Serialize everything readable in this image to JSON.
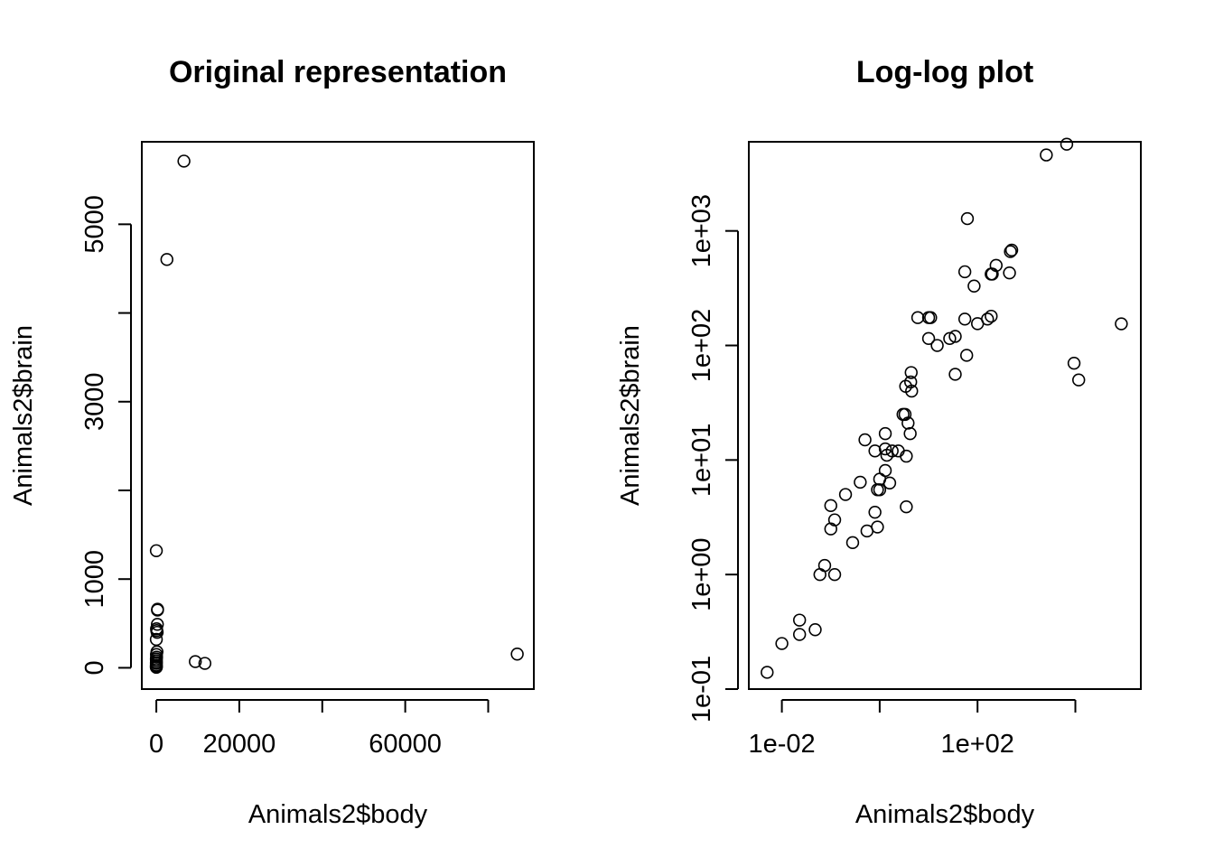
{
  "chart_data": [
    {
      "type": "scatter",
      "title": "Original representation",
      "xlabel": "Animals2$body",
      "ylabel": "Animals2$brain",
      "xscale": "linear",
      "yscale": "linear",
      "xlim": [
        -3500,
        91000
      ],
      "ylim": [
        -240,
        5930
      ],
      "x_ticks": [
        0,
        20000,
        40000,
        60000,
        80000
      ],
      "x_tick_labels": [
        "0",
        "20000",
        "",
        "60000",
        ""
      ],
      "y_ticks": [
        0,
        1000,
        2000,
        3000,
        4000,
        5000
      ],
      "y_tick_labels": [
        "0",
        "1000",
        "",
        "3000",
        "",
        "5000"
      ],
      "grid": false,
      "legend": "none",
      "points": [
        {
          "x": 6654,
          "y": 5712
        },
        {
          "x": 2547,
          "y": 4603
        },
        {
          "x": 87000,
          "y": 154.5
        },
        {
          "x": 9400,
          "y": 70
        },
        {
          "x": 11700,
          "y": 50
        },
        {
          "x": 0.0,
          "y": 1320
        },
        {
          "x": 250,
          "y": 490
        },
        {
          "x": 280,
          "y": 650
        },
        {
          "x": 300,
          "y": 660
        },
        {
          "x": 100,
          "y": 420
        },
        {
          "x": 50,
          "y": 440
        },
        {
          "x": 0,
          "y": 320
        },
        {
          "x": 200,
          "y": 400
        },
        {
          "x": 150,
          "y": 180
        },
        {
          "x": 30,
          "y": 150
        },
        {
          "x": 60,
          "y": 120
        },
        {
          "x": 10,
          "y": 60
        },
        {
          "x": 0,
          "y": 100
        },
        {
          "x": 20,
          "y": 80
        },
        {
          "x": 5,
          "y": 50
        },
        {
          "x": 2,
          "y": 30
        },
        {
          "x": 0,
          "y": 20
        },
        {
          "x": 0,
          "y": 10
        },
        {
          "x": 0,
          "y": 5
        }
      ]
    },
    {
      "type": "scatter",
      "title": "Log-log plot",
      "xlabel": "Animals2$body",
      "ylabel": "Animals2$brain",
      "xscale": "log",
      "yscale": "log",
      "xlim": [
        0.00211,
        218000
      ],
      "ylim": [
        0.1,
        6000
      ],
      "x_ticks": [
        0.01,
        1,
        100,
        10000
      ],
      "x_tick_labels": [
        "1e-02",
        "",
        "1e+02",
        ""
      ],
      "y_ticks": [
        0.1,
        1,
        10,
        100,
        1000
      ],
      "y_tick_labels": [
        "1e-01",
        "1e+00",
        "1e+01",
        "1e+02",
        "1e+03"
      ],
      "grid": false,
      "legend": "none",
      "points": [
        {
          "x": 0.005,
          "y": 0.14
        },
        {
          "x": 0.01,
          "y": 0.25
        },
        {
          "x": 0.023,
          "y": 0.3
        },
        {
          "x": 0.023,
          "y": 0.4
        },
        {
          "x": 0.048,
          "y": 0.33
        },
        {
          "x": 0.06,
          "y": 1.0
        },
        {
          "x": 0.075,
          "y": 1.2
        },
        {
          "x": 0.12,
          "y": 1.0
        },
        {
          "x": 0.1,
          "y": 2.5
        },
        {
          "x": 0.12,
          "y": 3.0
        },
        {
          "x": 0.1,
          "y": 4.0
        },
        {
          "x": 0.2,
          "y": 5.0
        },
        {
          "x": 0.28,
          "y": 1.9
        },
        {
          "x": 0.55,
          "y": 2.4
        },
        {
          "x": 0.9,
          "y": 2.6
        },
        {
          "x": 0.8,
          "y": 3.5
        },
        {
          "x": 0.4,
          "y": 6.4
        },
        {
          "x": 0.9,
          "y": 5.5
        },
        {
          "x": 1.0,
          "y": 5.5
        },
        {
          "x": 1.0,
          "y": 6.8
        },
        {
          "x": 1.6,
          "y": 6.3
        },
        {
          "x": 1.3,
          "y": 8.1
        },
        {
          "x": 0.5,
          "y": 15.0
        },
        {
          "x": 0.8,
          "y": 12.0
        },
        {
          "x": 1.3,
          "y": 12.5
        },
        {
          "x": 1.4,
          "y": 11.0
        },
        {
          "x": 1.8,
          "y": 12.0
        },
        {
          "x": 2.4,
          "y": 12.0
        },
        {
          "x": 1.3,
          "y": 17.0
        },
        {
          "x": 3.5,
          "y": 10.8
        },
        {
          "x": 4.2,
          "y": 17.0
        },
        {
          "x": 3.0,
          "y": 25.0
        },
        {
          "x": 3.3,
          "y": 25.0
        },
        {
          "x": 3.8,
          "y": 21.0
        },
        {
          "x": 3.5,
          "y": 3.9
        },
        {
          "x": 3.4,
          "y": 44.0
        },
        {
          "x": 4.3,
          "y": 48.0
        },
        {
          "x": 4.4,
          "y": 58.0
        },
        {
          "x": 4.5,
          "y": 40.0
        },
        {
          "x": 6.0,
          "y": 175.0
        },
        {
          "x": 10.0,
          "y": 175.0
        },
        {
          "x": 11.0,
          "y": 175.0
        },
        {
          "x": 10.0,
          "y": 115.0
        },
        {
          "x": 15.0,
          "y": 100.0
        },
        {
          "x": 27.0,
          "y": 115.0
        },
        {
          "x": 35.0,
          "y": 120.0
        },
        {
          "x": 35.0,
          "y": 56.0
        },
        {
          "x": 60.0,
          "y": 82.0
        },
        {
          "x": 55.0,
          "y": 170.0
        },
        {
          "x": 55.0,
          "y": 440.0
        },
        {
          "x": 62.0,
          "y": 1280.0
        },
        {
          "x": 85.0,
          "y": 330.0
        },
        {
          "x": 100.0,
          "y": 155.0
        },
        {
          "x": 160.0,
          "y": 170.0
        },
        {
          "x": 190.0,
          "y": 180.0
        },
        {
          "x": 190.0,
          "y": 420.0
        },
        {
          "x": 200.0,
          "y": 420.0
        },
        {
          "x": 240.0,
          "y": 500.0
        },
        {
          "x": 450.0,
          "y": 430.0
        },
        {
          "x": 470.0,
          "y": 660.0
        },
        {
          "x": 500.0,
          "y": 680.0
        },
        {
          "x": 2547.0,
          "y": 4603.0
        },
        {
          "x": 6654.0,
          "y": 5712.0
        },
        {
          "x": 9400.0,
          "y": 70.0
        },
        {
          "x": 11700.0,
          "y": 50.0
        },
        {
          "x": 87000.0,
          "y": 154.5
        }
      ]
    }
  ]
}
